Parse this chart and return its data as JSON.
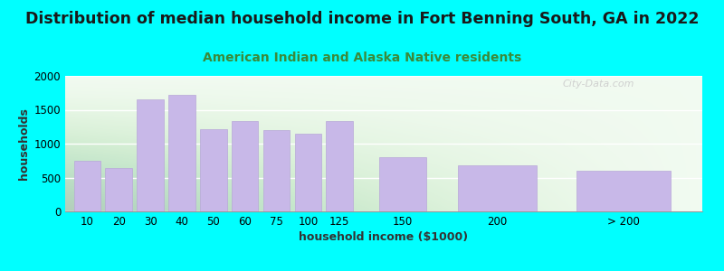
{
  "title": "Distribution of median household income in Fort Benning South, GA in 2022",
  "subtitle": "American Indian and Alaska Native residents",
  "xlabel": "household income ($1000)",
  "ylabel": "households",
  "categories": [
    "10",
    "20",
    "30",
    "40",
    "50",
    "60",
    "75",
    "100",
    "125",
    "150",
    "200",
    "> 200"
  ],
  "values": [
    750,
    640,
    1650,
    1720,
    1220,
    1340,
    1200,
    1150,
    1340,
    800,
    680,
    600
  ],
  "bar_color": "#c8b8e8",
  "bar_edge_color": "#b8a8d8",
  "bg_color": "#00ffff",
  "ylim": [
    0,
    2000
  ],
  "yticks": [
    0,
    500,
    1000,
    1500,
    2000
  ],
  "title_fontsize": 12.5,
  "subtitle_fontsize": 10,
  "axis_label_fontsize": 9,
  "tick_fontsize": 8.5,
  "watermark": "City-Data.com"
}
